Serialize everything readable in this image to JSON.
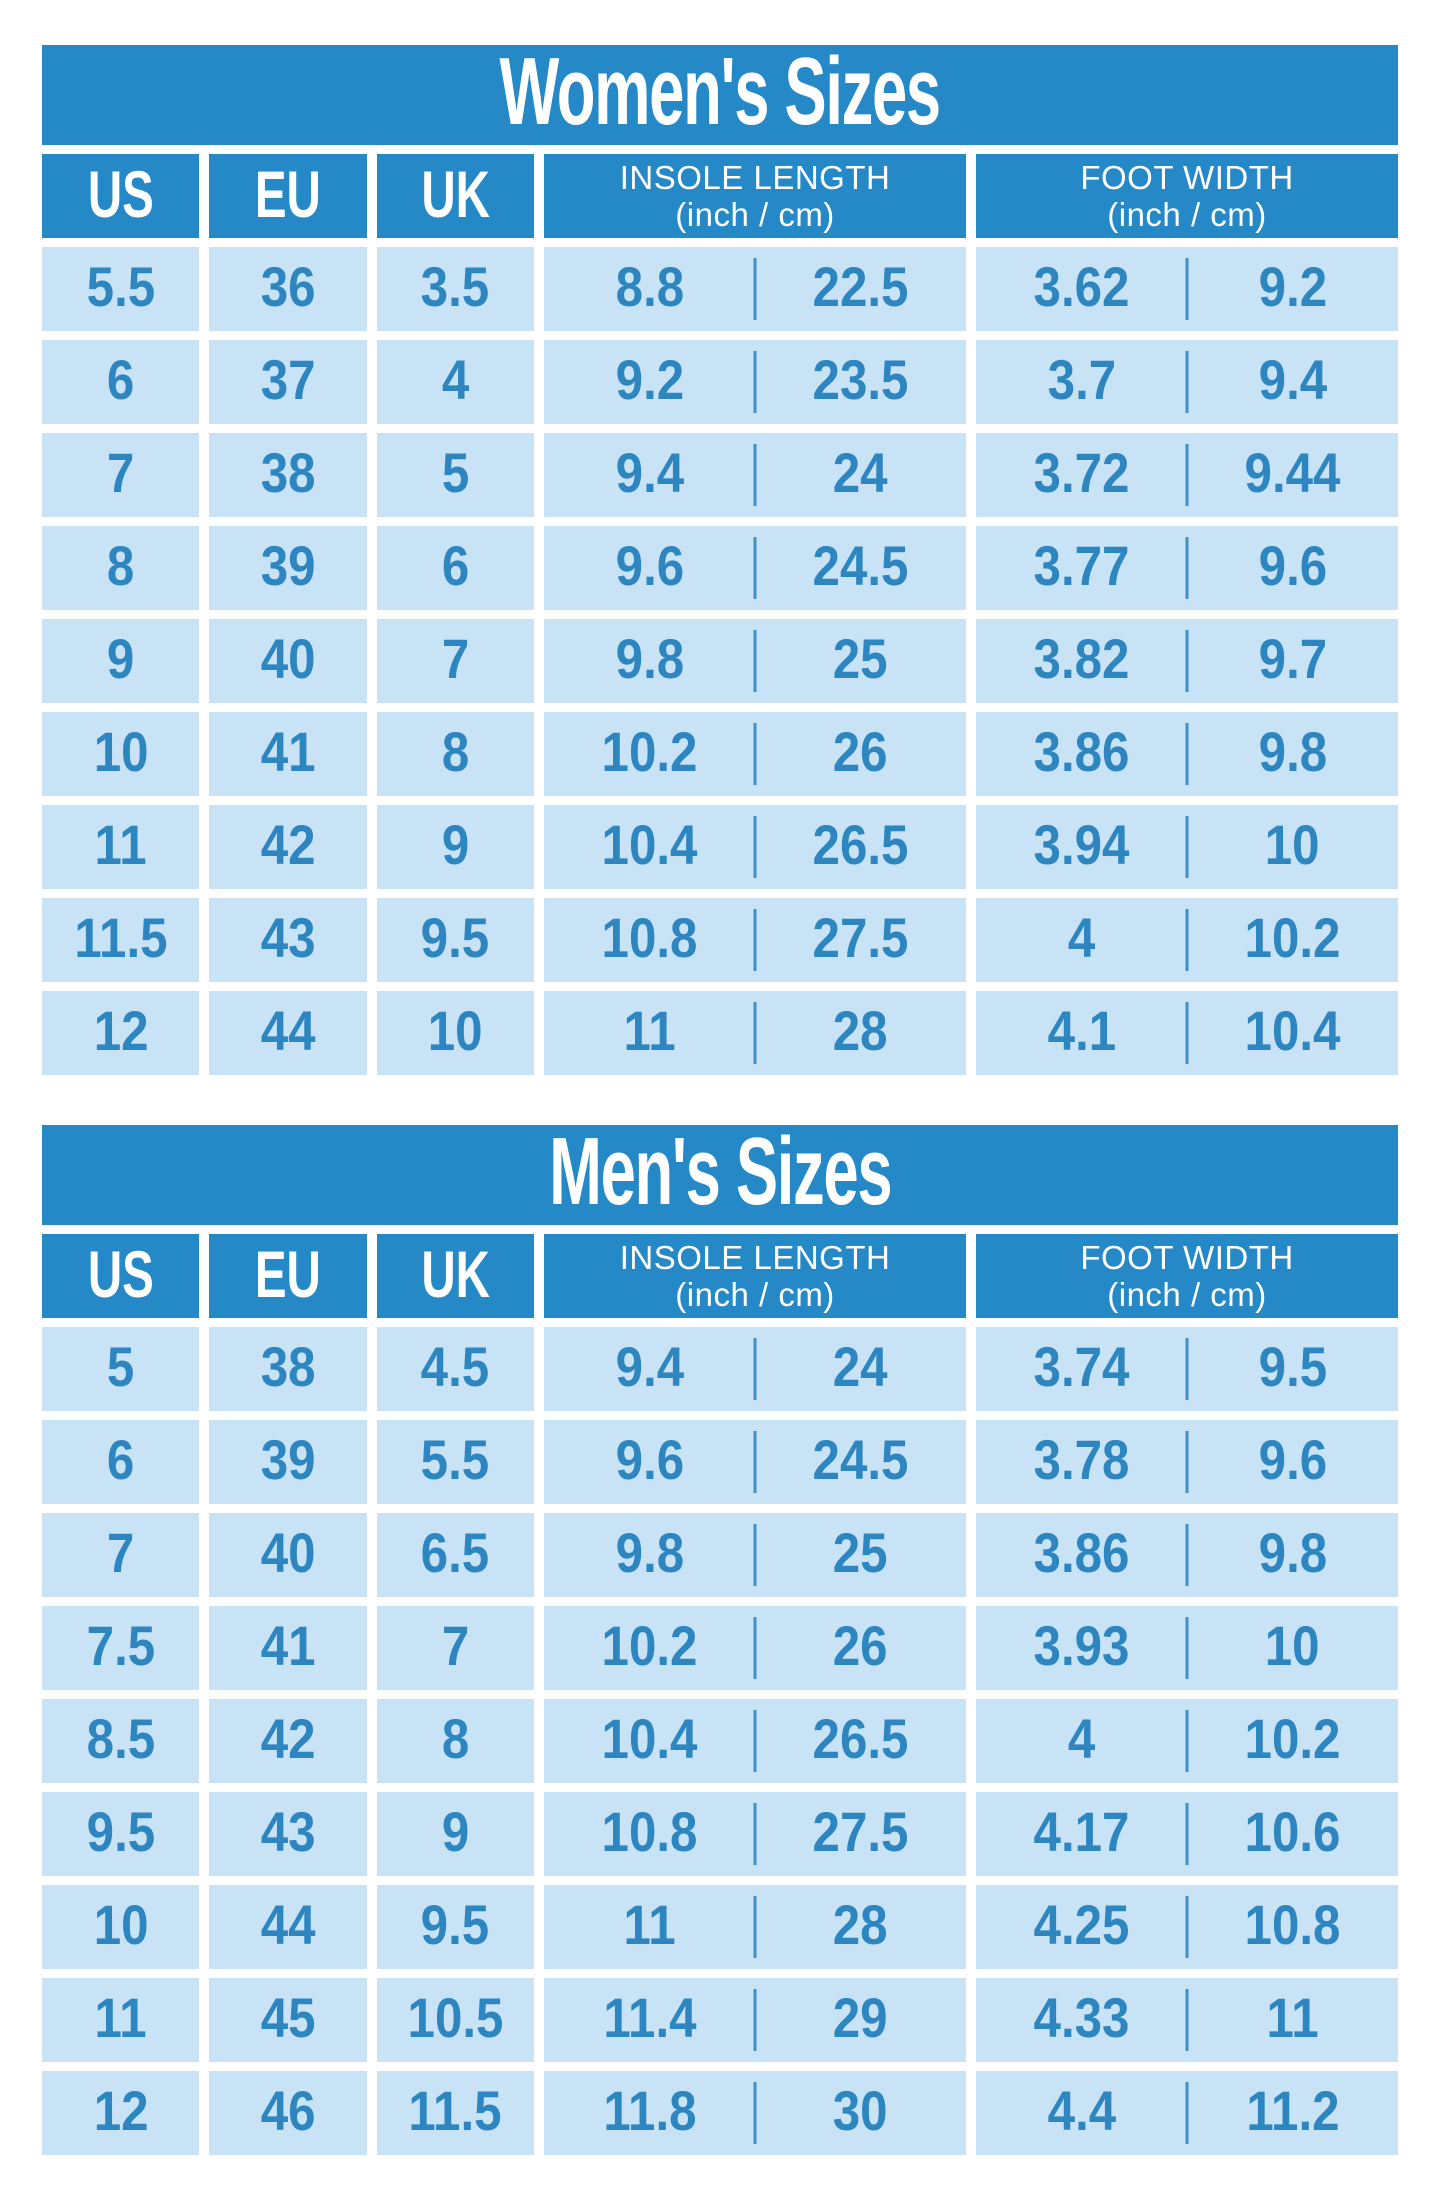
{
  "colors": {
    "header_blue": "#2489C6",
    "cell_blue": "#C9E3F6",
    "number_blue": "#2E86C1",
    "divider_blue": "#3E90C8",
    "title_text": "#ffffff",
    "background": "#ffffff"
  },
  "tables": [
    {
      "title": "Women's Sizes",
      "headers": {
        "us": "US",
        "eu": "EU",
        "uk": "UK",
        "insole_line1": "INSOLE LENGTH",
        "insole_line2": "(inch / cm)",
        "foot_line1": "FOOT WIDTH",
        "foot_line2": "(inch / cm)"
      },
      "rows": [
        {
          "us": "5.5",
          "eu": "36",
          "uk": "3.5",
          "insole_inch": "8.8",
          "insole_cm": "22.5",
          "width_inch": "3.62",
          "width_cm": "9.2"
        },
        {
          "us": "6",
          "eu": "37",
          "uk": "4",
          "insole_inch": "9.2",
          "insole_cm": "23.5",
          "width_inch": "3.7",
          "width_cm": "9.4"
        },
        {
          "us": "7",
          "eu": "38",
          "uk": "5",
          "insole_inch": "9.4",
          "insole_cm": "24",
          "width_inch": "3.72",
          "width_cm": "9.44"
        },
        {
          "us": "8",
          "eu": "39",
          "uk": "6",
          "insole_inch": "9.6",
          "insole_cm": "24.5",
          "width_inch": "3.77",
          "width_cm": "9.6"
        },
        {
          "us": "9",
          "eu": "40",
          "uk": "7",
          "insole_inch": "9.8",
          "insole_cm": "25",
          "width_inch": "3.82",
          "width_cm": "9.7"
        },
        {
          "us": "10",
          "eu": "41",
          "uk": "8",
          "insole_inch": "10.2",
          "insole_cm": "26",
          "width_inch": "3.86",
          "width_cm": "9.8"
        },
        {
          "us": "11",
          "eu": "42",
          "uk": "9",
          "insole_inch": "10.4",
          "insole_cm": "26.5",
          "width_inch": "3.94",
          "width_cm": "10"
        },
        {
          "us": "11.5",
          "eu": "43",
          "uk": "9.5",
          "insole_inch": "10.8",
          "insole_cm": "27.5",
          "width_inch": "4",
          "width_cm": "10.2"
        },
        {
          "us": "12",
          "eu": "44",
          "uk": "10",
          "insole_inch": "11",
          "insole_cm": "28",
          "width_inch": "4.1",
          "width_cm": "10.4"
        }
      ]
    },
    {
      "title": "Men's Sizes",
      "headers": {
        "us": "US",
        "eu": "EU",
        "uk": "UK",
        "insole_line1": "INSOLE LENGTH",
        "insole_line2": "(inch / cm)",
        "foot_line1": "FOOT WIDTH",
        "foot_line2": "(inch / cm)"
      },
      "rows": [
        {
          "us": "5",
          "eu": "38",
          "uk": "4.5",
          "insole_inch": "9.4",
          "insole_cm": "24",
          "width_inch": "3.74",
          "width_cm": "9.5"
        },
        {
          "us": "6",
          "eu": "39",
          "uk": "5.5",
          "insole_inch": "9.6",
          "insole_cm": "24.5",
          "width_inch": "3.78",
          "width_cm": "9.6"
        },
        {
          "us": "7",
          "eu": "40",
          "uk": "6.5",
          "insole_inch": "9.8",
          "insole_cm": "25",
          "width_inch": "3.86",
          "width_cm": "9.8"
        },
        {
          "us": "7.5",
          "eu": "41",
          "uk": "7",
          "insole_inch": "10.2",
          "insole_cm": "26",
          "width_inch": "3.93",
          "width_cm": "10"
        },
        {
          "us": "8.5",
          "eu": "42",
          "uk": "8",
          "insole_inch": "10.4",
          "insole_cm": "26.5",
          "width_inch": "4",
          "width_cm": "10.2"
        },
        {
          "us": "9.5",
          "eu": "43",
          "uk": "9",
          "insole_inch": "10.8",
          "insole_cm": "27.5",
          "width_inch": "4.17",
          "width_cm": "10.6"
        },
        {
          "us": "10",
          "eu": "44",
          "uk": "9.5",
          "insole_inch": "11",
          "insole_cm": "28",
          "width_inch": "4.25",
          "width_cm": "10.8"
        },
        {
          "us": "11",
          "eu": "45",
          "uk": "10.5",
          "insole_inch": "11.4",
          "insole_cm": "29",
          "width_inch": "4.33",
          "width_cm": "11"
        },
        {
          "us": "12",
          "eu": "46",
          "uk": "11.5",
          "insole_inch": "11.8",
          "insole_cm": "30",
          "width_inch": "4.4",
          "width_cm": "11.2"
        }
      ]
    }
  ]
}
